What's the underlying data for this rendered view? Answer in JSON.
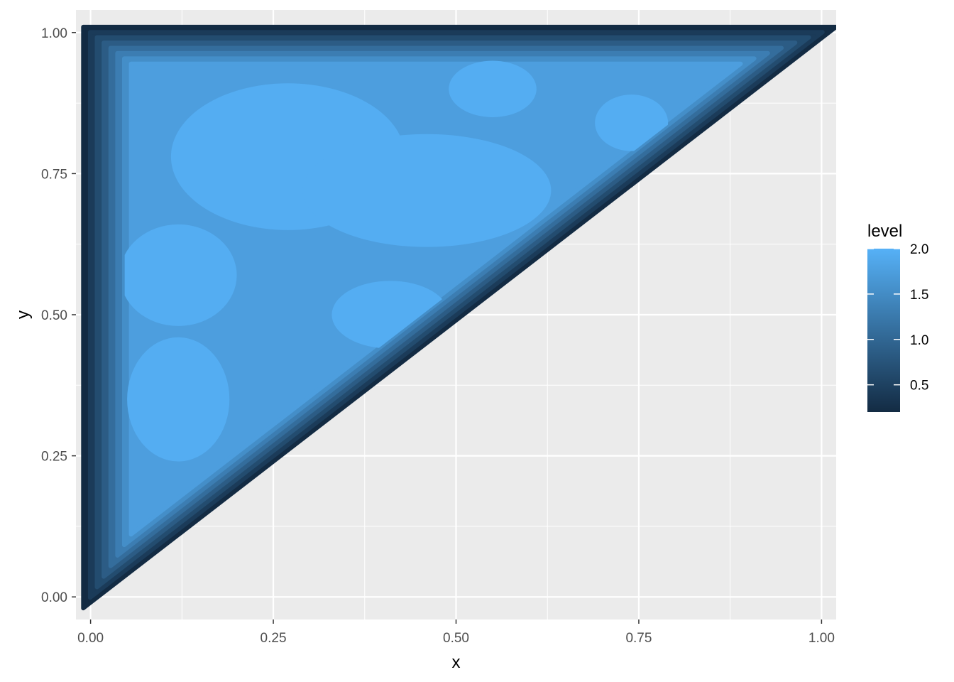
{
  "chart_data": {
    "type": "heatmap",
    "subtype": "filled density contour",
    "title": "",
    "xlabel": "x",
    "ylabel": "y",
    "xlim": [
      -0.02,
      1.02
    ],
    "ylim": [
      -0.04,
      1.04
    ],
    "x_ticks": [
      0.0,
      0.25,
      0.5,
      0.75,
      1.0
    ],
    "x_tick_labels": [
      "0.00",
      "0.25",
      "0.50",
      "0.75",
      "1.00"
    ],
    "y_ticks": [
      0.0,
      0.25,
      0.5,
      0.75,
      1.0
    ],
    "y_tick_labels": [
      "0.00",
      "0.25",
      "0.50",
      "0.75",
      "1.00"
    ],
    "grid": true,
    "panel_background": "#EBEBEB",
    "region": {
      "shape": "triangle",
      "vertices": [
        [
          0.0,
          0.0
        ],
        [
          0.0,
          1.0
        ],
        [
          1.0,
          1.0
        ]
      ],
      "description_level_interior": 1.75
    },
    "high_density_blobs": [
      {
        "center": [
          0.27,
          0.78
        ],
        "rx": 0.16,
        "ry": 0.13,
        "level": 1.95
      },
      {
        "center": [
          0.46,
          0.72
        ],
        "rx": 0.17,
        "ry": 0.1,
        "level": 1.95
      },
      {
        "center": [
          0.12,
          0.57
        ],
        "rx": 0.08,
        "ry": 0.09,
        "level": 1.95
      },
      {
        "center": [
          0.12,
          0.35
        ],
        "rx": 0.07,
        "ry": 0.11,
        "level": 1.95
      },
      {
        "center": [
          0.41,
          0.5
        ],
        "rx": 0.08,
        "ry": 0.06,
        "level": 1.95
      },
      {
        "center": [
          0.55,
          0.9
        ],
        "rx": 0.06,
        "ry": 0.05,
        "level": 1.95
      },
      {
        "center": [
          0.74,
          0.84
        ],
        "rx": 0.05,
        "ry": 0.05,
        "level": 1.95
      }
    ],
    "legend": {
      "title": "level",
      "position": "right",
      "range": [
        0.2,
        2.0
      ],
      "breaks": [
        0.5,
        1.0,
        1.5,
        2.0
      ],
      "break_labels": [
        "0.5",
        "1.0",
        "1.5",
        "2.0"
      ],
      "color_low": "#132B43",
      "color_high": "#56B1F7"
    }
  }
}
